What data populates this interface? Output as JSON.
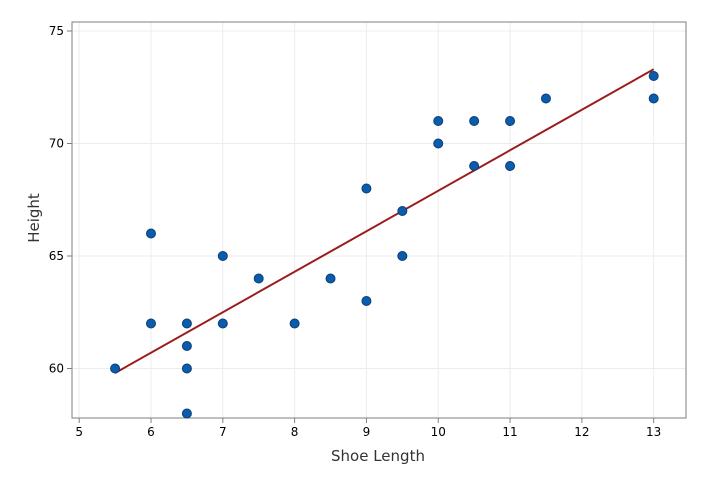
{
  "chart_data": {
    "type": "scatter",
    "title": "",
    "xlabel": "Shoe Length",
    "ylabel": "Height",
    "xlim": [
      4.9,
      13.45
    ],
    "ylim": [
      57.8,
      75.4
    ],
    "xticks": [
      5,
      6,
      7,
      8,
      9,
      10,
      11,
      12,
      13
    ],
    "yticks": [
      60,
      65,
      70,
      75
    ],
    "grid": true,
    "legend": "none",
    "points": [
      {
        "x": 5.5,
        "y": 60
      },
      {
        "x": 6,
        "y": 66
      },
      {
        "x": 6,
        "y": 62
      },
      {
        "x": 6.5,
        "y": 62
      },
      {
        "x": 6.5,
        "y": 61
      },
      {
        "x": 6.5,
        "y": 60
      },
      {
        "x": 6.5,
        "y": 58
      },
      {
        "x": 7,
        "y": 65
      },
      {
        "x": 7,
        "y": 62
      },
      {
        "x": 7.5,
        "y": 64
      },
      {
        "x": 8,
        "y": 62
      },
      {
        "x": 8.5,
        "y": 64
      },
      {
        "x": 9,
        "y": 68
      },
      {
        "x": 9,
        "y": 63
      },
      {
        "x": 9.5,
        "y": 67
      },
      {
        "x": 9.5,
        "y": 65
      },
      {
        "x": 10,
        "y": 71
      },
      {
        "x": 10,
        "y": 70
      },
      {
        "x": 10.5,
        "y": 71
      },
      {
        "x": 10.5,
        "y": 69
      },
      {
        "x": 11,
        "y": 71
      },
      {
        "x": 11,
        "y": 69
      },
      {
        "x": 11.5,
        "y": 72
      },
      {
        "x": 13,
        "y": 73
      },
      {
        "x": 13,
        "y": 72
      }
    ],
    "fit_line": {
      "x": [
        5.5,
        13
      ],
      "y": [
        59.8,
        73.3
      ]
    },
    "colors": {
      "point_fill": "#0b5cab",
      "point_stroke": "#0a3f78",
      "fit_line": "#9b1c1c",
      "grid": "#ececec",
      "frame": "#7f7f7f"
    }
  }
}
